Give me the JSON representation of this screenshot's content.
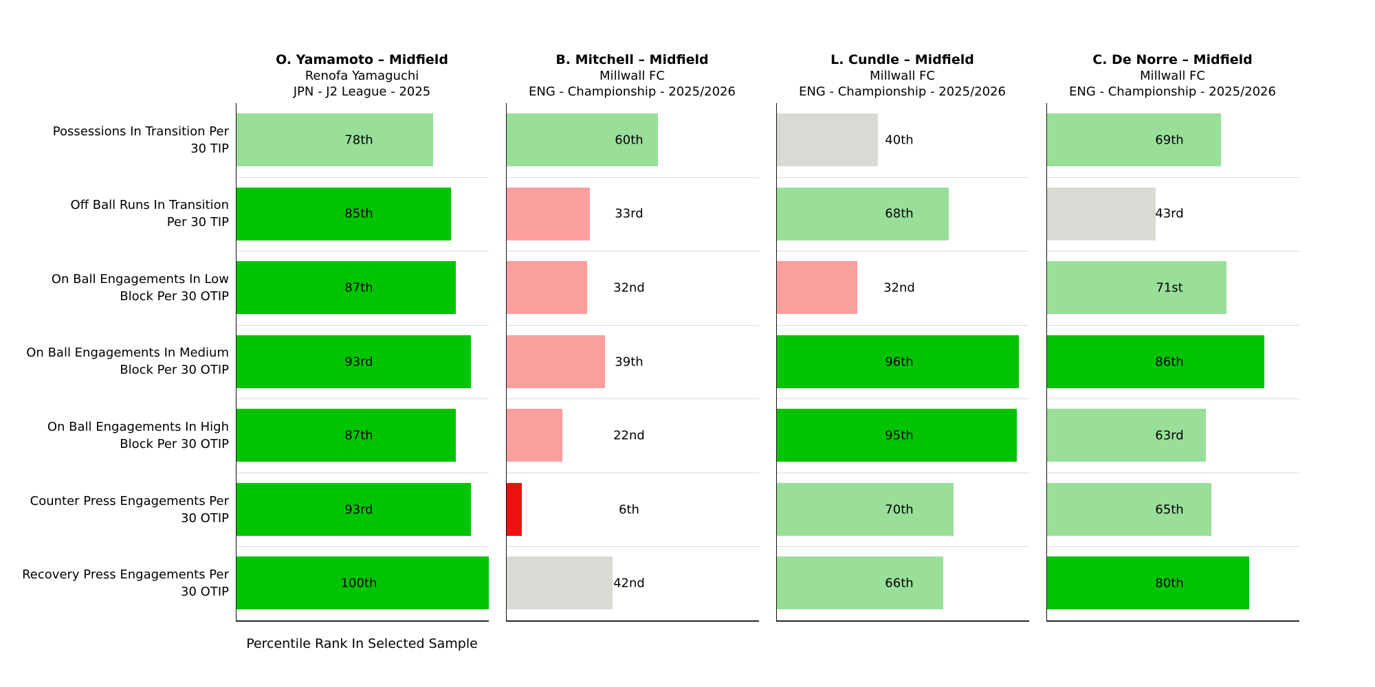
{
  "chart_data": {
    "type": "bar",
    "orientation": "horizontal",
    "xlim": [
      0,
      100
    ],
    "grid": false,
    "xlabel": "Percentile Rank In Selected Sample",
    "categories": [
      "Possessions In Transition Per 30 TIP",
      "Off Ball Runs In Transition Per 30 TIP",
      "On Ball Engagements In Low Block Per 30 OTIP",
      "On Ball Engagements In Medium Block Per 30 OTIP",
      "On Ball Engagements In High Block Per 30 OTIP",
      "Counter Press Engagements Per 30 OTIP",
      "Recovery Press Engagements Per 30 OTIP"
    ],
    "series": [
      {
        "name": "O. Yamamoto – Midfield",
        "team": "Renofa Yamaguchi",
        "league": "JPN - J2 League - 2025",
        "values": [
          78,
          85,
          87,
          93,
          87,
          93,
          100
        ],
        "labels": [
          "78th",
          "85th",
          "87th",
          "93rd",
          "87th",
          "93rd",
          "100th"
        ]
      },
      {
        "name": "B. Mitchell – Midfield",
        "team": "Millwall FC",
        "league": "ENG - Championship - 2025/2026",
        "values": [
          60,
          33,
          32,
          39,
          22,
          6,
          42
        ],
        "labels": [
          "60th",
          "33rd",
          "32nd",
          "39th",
          "22nd",
          "6th",
          "42nd"
        ]
      },
      {
        "name": "L. Cundle – Midfield",
        "team": "Millwall FC",
        "league": "ENG - Championship - 2025/2026",
        "values": [
          40,
          68,
          32,
          96,
          95,
          70,
          66
        ],
        "labels": [
          "40th",
          "68th",
          "32nd",
          "96th",
          "95th",
          "70th",
          "66th"
        ]
      },
      {
        "name": "C. De Norre – Midfield",
        "team": "Millwall FC",
        "league": "ENG - Championship - 2025/2026",
        "values": [
          69,
          43,
          71,
          86,
          63,
          65,
          80
        ],
        "labels": [
          "69th",
          "43rd",
          "71st",
          "86th",
          "63rd",
          "65th",
          "80th"
        ]
      }
    ],
    "color_scale": [
      {
        "min_value": 80,
        "color": "#00C400"
      },
      {
        "min_value": 60,
        "color": "#99DF99"
      },
      {
        "min_value": 40,
        "color": "#DBD9D3"
      },
      {
        "min_value": 10,
        "color": "#FA9E9E"
      },
      {
        "min_value": 0,
        "color": "#EE1111"
      }
    ]
  },
  "metrics_display": [
    {
      "lines": [
        "Possessions In Transition Per",
        "30 TIP"
      ]
    },
    {
      "lines": [
        "Off Ball Runs In Transition",
        "Per 30 TIP"
      ]
    },
    {
      "lines": [
        "On Ball Engagements In Low",
        "Block Per 30 OTIP"
      ]
    },
    {
      "lines": [
        "On Ball Engagements In Medium",
        "Block Per 30 OTIP"
      ]
    },
    {
      "lines": [
        "On Ball Engagements In High",
        "Block Per 30 OTIP"
      ]
    },
    {
      "lines": [
        "Counter Press Engagements Per",
        "30 OTIP"
      ]
    },
    {
      "lines": [
        "Recovery Press Engagements Per",
        "30 OTIP"
      ]
    }
  ],
  "style": {
    "separator_color": "#d9d9d9",
    "spine_color": "#262626",
    "text_color": "#000000",
    "background_color": "#ffffff"
  }
}
